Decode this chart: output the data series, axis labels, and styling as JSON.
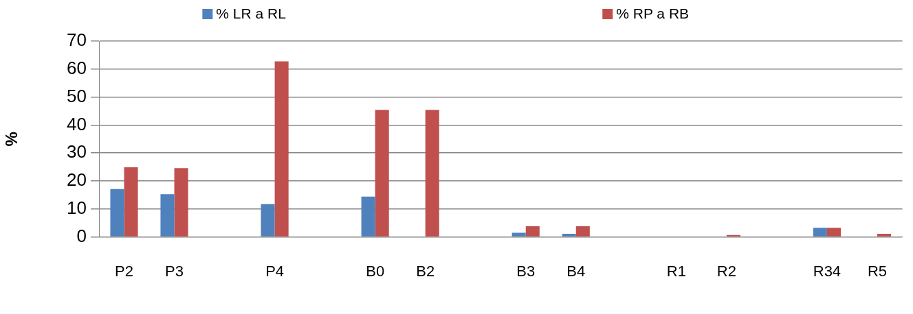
{
  "chart_data": {
    "type": "bar",
    "ylabel": "%",
    "categories": [
      "P2",
      "P3",
      null,
      "P4",
      null,
      "B0",
      "B2",
      null,
      "B3",
      "B4",
      null,
      "R1",
      "R2",
      null,
      "R34",
      "R5"
    ],
    "series": [
      {
        "name": "% LR a RL",
        "color": "#4f81bd",
        "values": [
          17.1,
          15.3,
          null,
          11.7,
          null,
          14.4,
          0,
          null,
          1.5,
          1.1,
          null,
          0,
          0,
          null,
          3.3,
          0.2
        ]
      },
      {
        "name": "% RP a RB",
        "color": "#c0504d",
        "values": [
          24.9,
          24.6,
          null,
          62.8,
          null,
          45.4,
          45.4,
          null,
          3.8,
          3.8,
          null,
          0,
          0.7,
          null,
          3.3,
          1.1
        ]
      }
    ],
    "ylim": [
      0,
      70
    ],
    "yticks": [
      0,
      10,
      20,
      30,
      40,
      50,
      60,
      70
    ],
    "grid": "y",
    "legend": "top"
  }
}
